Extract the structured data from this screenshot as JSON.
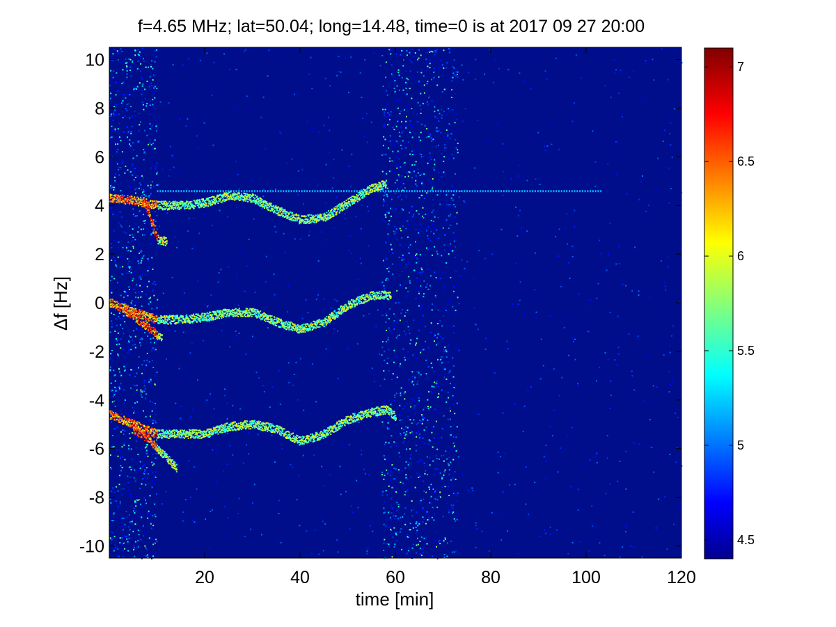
{
  "chart_data": {
    "type": "heatmap",
    "title": "f=4.65 MHz;  lat=50.04; long=14.48, time=0 is at 2017 09 27 20:00",
    "xlabel": "time [min]",
    "ylabel": "Δf [Hz]",
    "xlim": [
      0,
      120
    ],
    "ylim": [
      -10.5,
      10.5
    ],
    "xticks": [
      20,
      40,
      60,
      80,
      100,
      120
    ],
    "yticks": [
      10,
      8,
      6,
      4,
      2,
      0,
      -2,
      -4,
      -6,
      -8,
      -10
    ],
    "colorbar": {
      "range": [
        4.4,
        7.1
      ],
      "ticks": [
        7,
        6.5,
        6,
        5.5,
        5,
        4.5
      ],
      "colormap": "jet"
    },
    "colors": {
      "background": "#000e8c",
      "low": "#00008f",
      "high": "#800000"
    },
    "noise_bands": [
      {
        "t_start": 0,
        "t_end": 10,
        "intensity": 0.55
      },
      {
        "t_start": 57,
        "t_end": 73,
        "intensity": 0.45
      }
    ],
    "carrier_line": {
      "df": 4.6,
      "t_start": 10,
      "t_end": 103
    },
    "traces": [
      {
        "name": "upper",
        "points": [
          [
            0,
            4.3
          ],
          [
            5,
            4.2
          ],
          [
            10,
            4.0
          ],
          [
            15,
            4.0
          ],
          [
            20,
            4.1
          ],
          [
            25,
            4.4
          ],
          [
            30,
            4.3
          ],
          [
            35,
            3.8
          ],
          [
            40,
            3.4
          ],
          [
            45,
            3.5
          ],
          [
            50,
            4.1
          ],
          [
            55,
            4.7
          ],
          [
            58,
            4.9
          ]
        ],
        "branch": [
          [
            7,
            4.2
          ],
          [
            8,
            3.8
          ],
          [
            9,
            3.2
          ],
          [
            10,
            2.6
          ],
          [
            12,
            2.5
          ]
        ]
      },
      {
        "name": "middle",
        "points": [
          [
            0,
            0.0
          ],
          [
            5,
            -0.4
          ],
          [
            10,
            -0.7
          ],
          [
            15,
            -0.7
          ],
          [
            20,
            -0.6
          ],
          [
            25,
            -0.4
          ],
          [
            30,
            -0.4
          ],
          [
            35,
            -0.8
          ],
          [
            40,
            -1.1
          ],
          [
            45,
            -0.8
          ],
          [
            50,
            -0.1
          ],
          [
            55,
            0.3
          ],
          [
            59,
            0.3
          ]
        ],
        "branch": [
          [
            3,
            -0.3
          ],
          [
            6,
            -0.7
          ],
          [
            8,
            -1.0
          ],
          [
            11,
            -1.5
          ]
        ]
      },
      {
        "name": "lower",
        "points": [
          [
            0,
            -4.6
          ],
          [
            5,
            -5.0
          ],
          [
            10,
            -5.4
          ],
          [
            15,
            -5.4
          ],
          [
            20,
            -5.4
          ],
          [
            25,
            -5.1
          ],
          [
            30,
            -5.0
          ],
          [
            35,
            -5.2
          ],
          [
            40,
            -5.7
          ],
          [
            45,
            -5.4
          ],
          [
            50,
            -4.8
          ],
          [
            55,
            -4.5
          ],
          [
            58,
            -4.4
          ],
          [
            60,
            -4.7
          ]
        ],
        "branch": [
          [
            5,
            -5.2
          ],
          [
            8,
            -5.6
          ],
          [
            11,
            -6.2
          ],
          [
            14,
            -6.8
          ]
        ]
      }
    ]
  }
}
